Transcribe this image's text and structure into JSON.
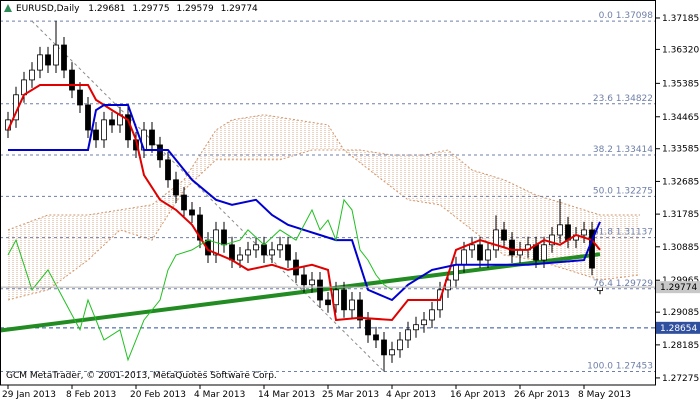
{
  "chart_data": {
    "type": "candlestick",
    "symbol": "EURUSD,Daily",
    "footer": "GCM MetaTrader, © 2001-2013, MetaQuotes Software Corp.",
    "ylim": [
      1.2708,
      1.3768
    ],
    "yticks": [
      1.37185,
      {
        "value": 1.3632,
        "label": "1.36320"
      },
      1.35385,
      1.34465,
      1.33585,
      1.32685,
      1.31785,
      1.30885,
      1.29965,
      1.29085,
      1.28185,
      1.27275
    ],
    "xticks": [
      {
        "value": 0,
        "label": "29 Jan 2013"
      },
      {
        "value": 8,
        "label": "8 Feb 2013"
      },
      {
        "value": 16,
        "label": "20 Feb 2013"
      },
      {
        "value": 24,
        "label": "4 Mar 2013"
      },
      {
        "value": 32,
        "label": "14 Mar 2013"
      },
      {
        "value": 40,
        "label": "25 Mar 2013"
      },
      {
        "value": 48,
        "label": "4 Apr 2013"
      },
      {
        "value": 56,
        "label": "16 Apr 2013"
      },
      {
        "value": 64,
        "label": "26 Apr 2013"
      },
      {
        "value": 72,
        "label": "8 May 2013"
      }
    ],
    "bull_color": "#ffffff",
    "bear_color": "#000000",
    "candles": [
      [
        1.341,
        1.346,
        1.3388,
        1.3438
      ],
      [
        1.3438,
        1.3529,
        1.3416,
        1.3507
      ],
      [
        1.3507,
        1.357,
        1.3485,
        1.3548
      ],
      [
        1.3548,
        1.3597,
        1.3526,
        1.3575
      ],
      [
        1.3575,
        1.3639,
        1.3553,
        1.3617
      ],
      [
        1.3617,
        1.3639,
        1.3567,
        1.3589
      ],
      [
        1.3589,
        1.3711,
        1.3567,
        1.3644
      ],
      [
        1.3644,
        1.3666,
        1.3553,
        1.3575
      ],
      [
        1.3575,
        1.3597,
        1.3498,
        1.352
      ],
      [
        1.352,
        1.3542,
        1.3457,
        1.3479
      ],
      [
        1.3479,
        1.3501,
        1.3388,
        1.341
      ],
      [
        1.341,
        1.3432,
        1.3361,
        1.3383
      ],
      [
        1.3383,
        1.346,
        1.3361,
        1.3438
      ],
      [
        1.3438,
        1.346,
        1.3402,
        1.3424
      ],
      [
        1.3424,
        1.3474,
        1.3402,
        1.3452
      ],
      [
        1.3452,
        1.3474,
        1.3361,
        1.3383
      ],
      [
        1.3383,
        1.3405,
        1.3333,
        1.3355
      ],
      [
        1.3355,
        1.3432,
        1.3333,
        1.341
      ],
      [
        1.341,
        1.3432,
        1.3347,
        1.3369
      ],
      [
        1.3369,
        1.3391,
        1.3306,
        1.3328
      ],
      [
        1.3328,
        1.335,
        1.3251,
        1.3273
      ],
      [
        1.3273,
        1.3295,
        1.3209,
        1.3231
      ],
      [
        1.3231,
        1.3253,
        1.3168,
        1.319
      ],
      [
        1.319,
        1.3212,
        1.3154,
        1.3176
      ],
      [
        1.3176,
        1.3198,
        1.3085,
        1.3107
      ],
      [
        1.3107,
        1.3129,
        1.3044,
        1.3066
      ],
      [
        1.3066,
        1.3157,
        1.3044,
        1.3135
      ],
      [
        1.3135,
        1.3157,
        1.3072,
        1.3094
      ],
      [
        1.3094,
        1.3116,
        1.303,
        1.3052
      ],
      [
        1.3052,
        1.3088,
        1.303,
        1.3066
      ],
      [
        1.3066,
        1.3102,
        1.3044,
        1.308
      ],
      [
        1.308,
        1.3116,
        1.3058,
        1.3094
      ],
      [
        1.3094,
        1.3116,
        1.3044,
        1.3066
      ],
      [
        1.3066,
        1.3102,
        1.3044,
        1.308
      ],
      [
        1.308,
        1.3116,
        1.3058,
        1.3094
      ],
      [
        1.3094,
        1.3116,
        1.303,
        1.3052
      ],
      [
        1.3052,
        1.3074,
        1.2989,
        1.3011
      ],
      [
        1.3011,
        1.3033,
        1.2962,
        1.2984
      ],
      [
        1.2984,
        1.3019,
        1.2962,
        1.2997
      ],
      [
        1.2997,
        1.3019,
        1.292,
        1.2942
      ],
      [
        1.2942,
        1.2964,
        1.2907,
        1.2929
      ],
      [
        1.2929,
        1.2992,
        1.2907,
        1.297
      ],
      [
        1.297,
        1.2992,
        1.2893,
        1.2915
      ],
      [
        1.2915,
        1.2964,
        1.2893,
        1.2942
      ],
      [
        1.2942,
        1.2964,
        1.2865,
        1.2887
      ],
      [
        1.2887,
        1.2909,
        1.2824,
        1.2846
      ],
      [
        1.2846,
        1.2868,
        1.281,
        1.2832
      ],
      [
        1.2832,
        1.2854,
        1.2745,
        1.2791
      ],
      [
        1.2791,
        1.2827,
        1.2769,
        1.2805
      ],
      [
        1.2805,
        1.2854,
        1.2783,
        1.2832
      ],
      [
        1.2832,
        1.2882,
        1.281,
        1.286
      ],
      [
        1.286,
        1.2896,
        1.2838,
        1.2874
      ],
      [
        1.2874,
        1.2909,
        1.2852,
        1.2887
      ],
      [
        1.2887,
        1.2937,
        1.2865,
        1.2915
      ],
      [
        1.2915,
        1.2992,
        1.2893,
        1.297
      ],
      [
        1.297,
        1.3019,
        1.2948,
        1.2997
      ],
      [
        1.2997,
        1.3061,
        1.2975,
        1.3039
      ],
      [
        1.3039,
        1.3102,
        1.3017,
        1.308
      ],
      [
        1.308,
        1.3116,
        1.3058,
        1.3094
      ],
      [
        1.3094,
        1.3116,
        1.303,
        1.3052
      ],
      [
        1.3052,
        1.3102,
        1.303,
        1.308
      ],
      [
        1.308,
        1.3175,
        1.3058,
        1.3135
      ],
      [
        1.3135,
        1.3157,
        1.3085,
        1.3107
      ],
      [
        1.3107,
        1.3129,
        1.3044,
        1.3066
      ],
      [
        1.3066,
        1.3102,
        1.3044,
        1.308
      ],
      [
        1.308,
        1.3116,
        1.3058,
        1.3094
      ],
      [
        1.3094,
        1.3116,
        1.303,
        1.3052
      ],
      [
        1.3052,
        1.3116,
        1.303,
        1.3094
      ],
      [
        1.3094,
        1.3143,
        1.3072,
        1.3121
      ],
      [
        1.3121,
        1.322,
        1.3099,
        1.3149
      ],
      [
        1.3149,
        1.3171,
        1.3085,
        1.3107
      ],
      [
        1.3107,
        1.3143,
        1.3085,
        1.3121
      ],
      [
        1.3121,
        1.3157,
        1.3099,
        1.3135
      ],
      [
        1.3135,
        1.3157,
        1.301,
        1.303
      ],
      [
        1.29681,
        1.29775,
        1.29579,
        1.29774
      ]
    ],
    "lines": [
      {
        "color": "#e00000",
        "x": [
          0,
          2,
          4,
          10,
          11,
          13,
          15,
          16,
          17,
          19,
          21,
          23,
          25,
          28,
          30,
          33,
          35,
          38,
          40,
          41,
          44,
          48,
          50,
          54,
          56,
          59,
          63,
          65,
          67,
          69,
          71,
          73,
          74
        ],
        "values": [
          1.341,
          1.3507,
          1.3534,
          1.3534,
          1.3493,
          1.3465,
          1.3438,
          1.3383,
          1.3286,
          1.3218,
          1.319,
          1.3149,
          1.308,
          1.3052,
          1.3025,
          1.3039,
          1.3025,
          1.3039,
          1.3025,
          1.2887,
          1.2893,
          1.2887,
          1.2942,
          1.2942,
          1.308,
          1.3107,
          1.308,
          1.308,
          1.3107,
          1.3094,
          1.3121,
          1.3107,
          1.308
        ]
      },
      {
        "color": "#0000d0",
        "x": [
          0,
          2,
          6,
          10,
          11,
          12,
          15,
          17,
          20,
          23,
          26,
          28,
          31,
          33,
          35,
          37,
          39,
          41,
          43,
          45,
          48,
          50,
          53,
          56,
          60,
          65,
          72,
          73,
          74
        ],
        "values": [
          1.3355,
          1.3355,
          1.3355,
          1.3355,
          1.3465,
          1.3479,
          1.3479,
          1.3355,
          1.3355,
          1.3273,
          1.3218,
          1.3204,
          1.3218,
          1.3176,
          1.3149,
          1.3135,
          1.3121,
          1.3107,
          1.3107,
          1.297,
          1.2942,
          1.2984,
          1.3025,
          1.3039,
          1.3039,
          1.3039,
          1.3052,
          1.3107,
          1.3157
        ]
      },
      {
        "color": "#20c020",
        "x": [
          0,
          1,
          3,
          5,
          7,
          9,
          10,
          12,
          14,
          15,
          17,
          19,
          20,
          21,
          23,
          25,
          27,
          29,
          30,
          32,
          34,
          36,
          38,
          39,
          40,
          41,
          42,
          43,
          44,
          45,
          46,
          47,
          48
        ],
        "values": [
          1.3066,
          1.3107,
          1.297,
          1.3025,
          1.2942,
          1.286,
          1.2942,
          1.2832,
          1.286,
          1.2777,
          1.2887,
          1.2942,
          1.3025,
          1.3066,
          1.308,
          1.3107,
          1.3094,
          1.3107,
          1.3135,
          1.3094,
          1.3135,
          1.3107,
          1.319,
          1.3135,
          1.3162,
          1.3107,
          1.3218,
          1.319,
          1.308,
          1.3052,
          1.3011,
          1.2984,
          1.297
        ]
      }
    ],
    "cloud": {
      "color": "#d2956a",
      "span_a": {
        "x": [
          0,
          5,
          10,
          14,
          18,
          22,
          26,
          28,
          32,
          36,
          40,
          42,
          44,
          48,
          52,
          55,
          58,
          62,
          66,
          70,
          74,
          79
        ],
        "values": [
          1.3135,
          1.3176,
          1.3176,
          1.319,
          1.3204,
          1.3273,
          1.341,
          1.3438,
          1.3452,
          1.3438,
          1.3424,
          1.3355,
          1.3355,
          1.3341,
          1.3341,
          1.3355,
          1.33,
          1.3273,
          1.3231,
          1.3204,
          1.3176,
          1.3176
        ]
      },
      "span_b": {
        "x": [
          0,
          5,
          10,
          14,
          18,
          22,
          26,
          30,
          34,
          38,
          42,
          46,
          50,
          54,
          58,
          62,
          66,
          70,
          74,
          79
        ],
        "values": [
          1.2942,
          1.297,
          1.3052,
          1.3135,
          1.3107,
          1.3245,
          1.3328,
          1.3328,
          1.3328,
          1.3355,
          1.3355,
          1.3286,
          1.3218,
          1.3204,
          1.3135,
          1.3066,
          1.3052,
          1.3025,
          1.2997,
          1.3011
        ]
      }
    },
    "trendline": {
      "color": "#228b22",
      "x": [
        -1,
        74
      ],
      "values": [
        1.2858,
        1.3068
      ]
    },
    "fibo": {
      "color": "#6e7fa8",
      "x": [
        3,
        47
      ],
      "levels": [
        {
          "label": "0.0 1.37098",
          "price": 1.37098
        },
        {
          "label": "23.6 1.34822",
          "price": 1.34822
        },
        {
          "label": "38.2 1.33414",
          "price": 1.33414
        },
        {
          "label": "50.0 1.32275",
          "price": 1.32275
        },
        {
          "label": "61.8 1.31137",
          "price": 1.31137
        },
        {
          "label": "76.4 1.29729",
          "price": 1.29729
        },
        {
          "label": "100.0 1.27453",
          "price": 1.27453
        }
      ]
    },
    "hline": {
      "price": 1.28654,
      "color": "#2f4f9f"
    }
  }
}
